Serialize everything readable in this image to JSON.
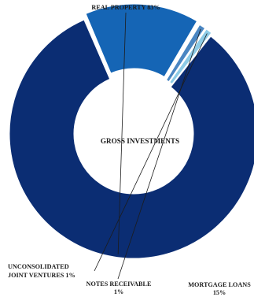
{
  "chart_data": {
    "type": "pie",
    "title": "GROSS INVESTMENTS",
    "slices": [
      {
        "label": "REAL PROPERTY 83%",
        "value": 83,
        "color": "#0b2d73"
      },
      {
        "label": "MORTGAGE LOANS",
        "label_line2": "15%",
        "value": 15,
        "color": "#1565b5"
      },
      {
        "label": "NOTES RECEIVABLE",
        "label_line2": "1%",
        "value": 1,
        "color": "#4a86c2"
      },
      {
        "label": "UNCONSOLIDATED",
        "label_line2": "JOINT VENTURES 1%",
        "value": 1,
        "color": "#8dcbe6"
      }
    ],
    "legend": "none",
    "grid": false
  }
}
